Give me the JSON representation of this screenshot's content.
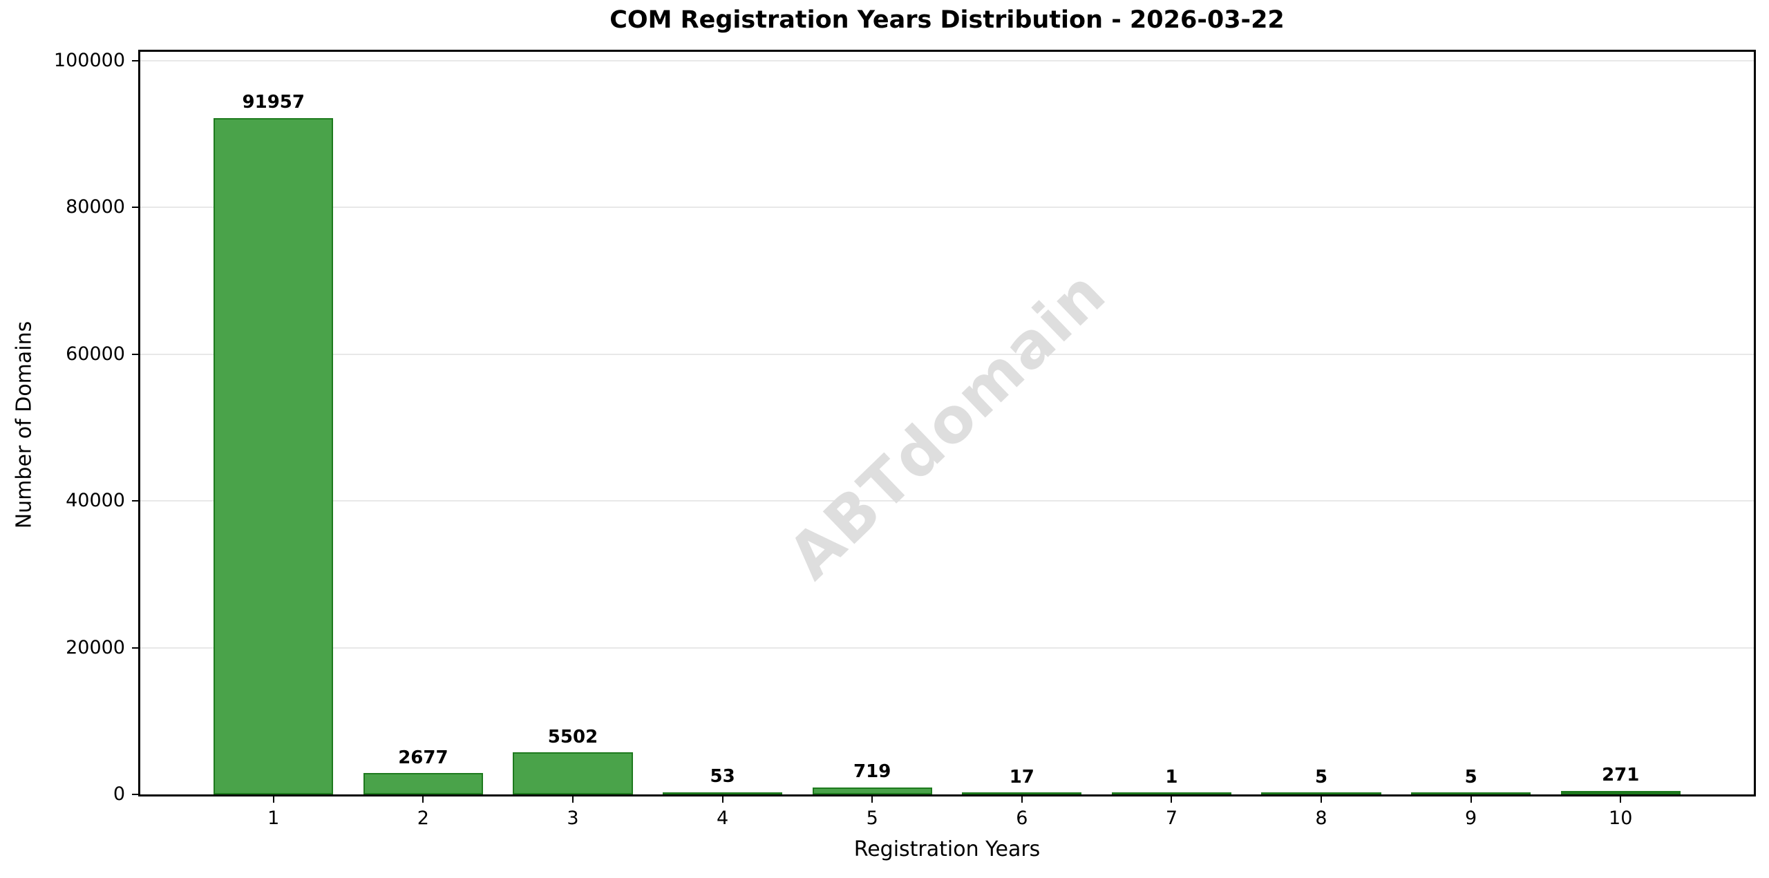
{
  "chart_data": {
    "type": "bar",
    "title": "COM Registration Years Distribution - 2026-03-22",
    "xlabel": "Registration Years",
    "ylabel": "Number of Domains",
    "categories": [
      1,
      2,
      3,
      4,
      5,
      6,
      7,
      8,
      9,
      10
    ],
    "values": [
      91957,
      2677,
      5502,
      53,
      719,
      17,
      1,
      5,
      5,
      271
    ],
    "yticks": [
      0,
      20000,
      40000,
      60000,
      80000,
      100000
    ],
    "ylim": [
      0,
      101200
    ],
    "xlim": [
      0.11,
      10.89
    ],
    "bar_width": 0.8,
    "grid": "horizontal",
    "legend": "none",
    "watermark": "ABTdomain",
    "colors": {
      "bar_fill": "#4AA34A",
      "bar_edge": "#1E7A1E",
      "gridline": "#e8e8e8",
      "spine": "#000000",
      "text": "#000000",
      "watermark": "#dedede"
    }
  }
}
